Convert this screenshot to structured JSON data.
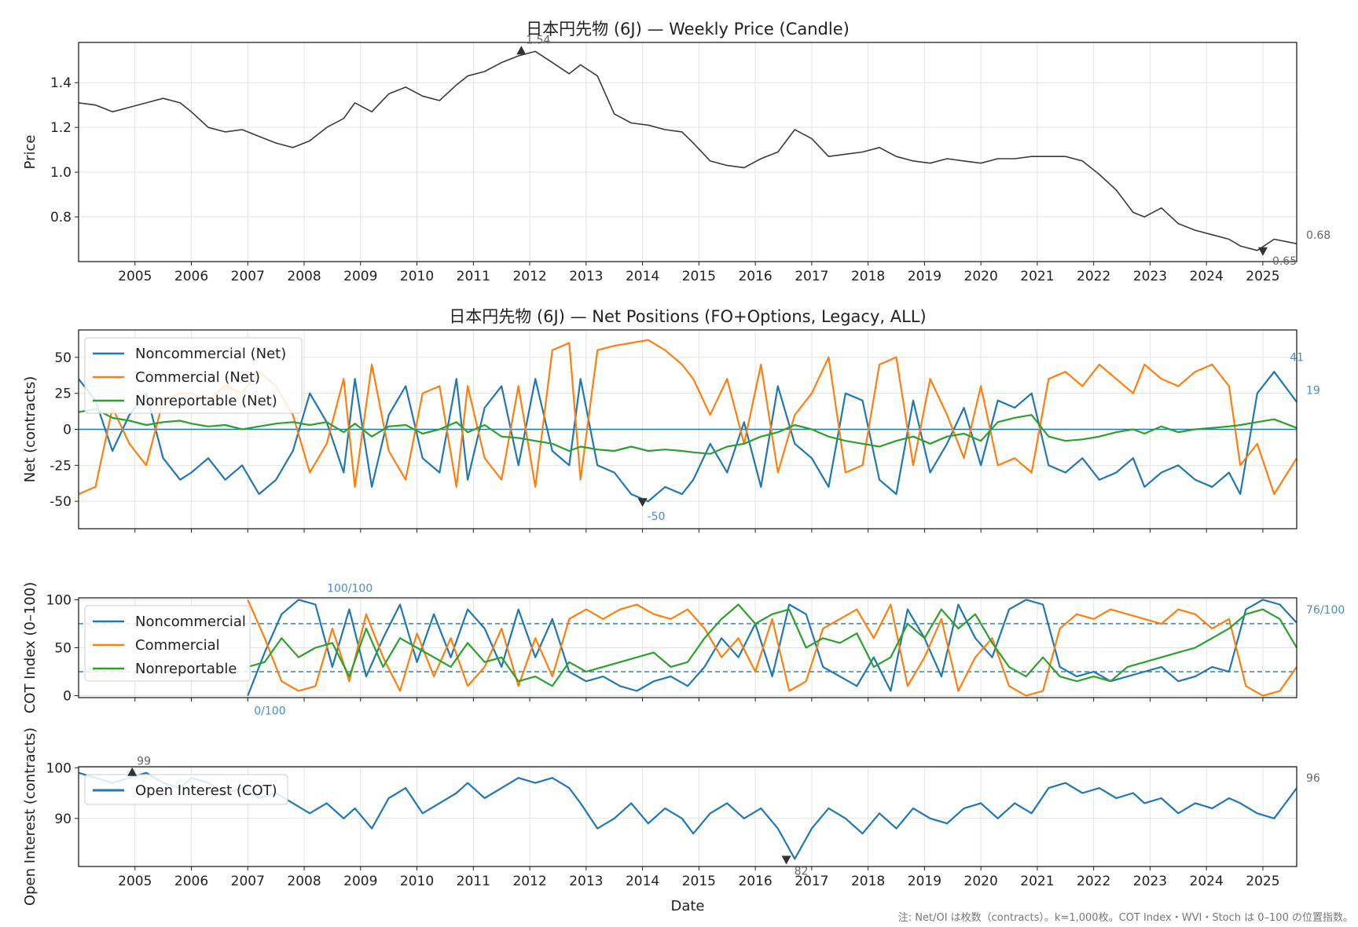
{
  "chart_data": [
    {
      "type": "line",
      "title": "日本円先物 (6J) — Weekly Price (Candle)",
      "xlabel": "",
      "ylabel": "Price",
      "x_ticks": [
        "2005",
        "2006",
        "2007",
        "2008",
        "2009",
        "2010",
        "2011",
        "2012",
        "2013",
        "2014",
        "2015",
        "2016",
        "2017",
        "2018",
        "2019",
        "2020",
        "2021",
        "2022",
        "2023",
        "2024",
        "2025"
      ],
      "y_ticks": [
        "0.8",
        "1.0",
        "1.2",
        "1.4"
      ],
      "ylim": [
        0.6,
        1.58
      ],
      "xlim": [
        2004.0,
        2025.6
      ],
      "grid": true,
      "x": [
        2004.0,
        2004.3,
        2004.6,
        2004.9,
        2005.2,
        2005.5,
        2005.8,
        2006.0,
        2006.3,
        2006.6,
        2006.9,
        2007.2,
        2007.5,
        2007.8,
        2008.1,
        2008.4,
        2008.7,
        2008.9,
        2009.2,
        2009.5,
        2009.8,
        2010.1,
        2010.4,
        2010.7,
        2010.9,
        2011.2,
        2011.5,
        2011.8,
        2012.1,
        2012.4,
        2012.7,
        2012.9,
        2013.2,
        2013.5,
        2013.8,
        2014.1,
        2014.4,
        2014.7,
        2014.9,
        2015.2,
        2015.5,
        2015.8,
        2016.1,
        2016.4,
        2016.7,
        2017.0,
        2017.3,
        2017.6,
        2017.9,
        2018.2,
        2018.5,
        2018.8,
        2019.1,
        2019.4,
        2019.7,
        2020.0,
        2020.3,
        2020.6,
        2020.9,
        2021.2,
        2021.5,
        2021.8,
        2022.1,
        2022.4,
        2022.7,
        2022.9,
        2023.2,
        2023.5,
        2023.8,
        2024.1,
        2024.4,
        2024.6,
        2024.9,
        2025.2,
        2025.6
      ],
      "series": [
        {
          "name": "",
          "values": [
            1.31,
            1.3,
            1.27,
            1.29,
            1.31,
            1.33,
            1.31,
            1.27,
            1.2,
            1.18,
            1.19,
            1.16,
            1.13,
            1.11,
            1.14,
            1.2,
            1.24,
            1.31,
            1.27,
            1.35,
            1.38,
            1.34,
            1.32,
            1.39,
            1.43,
            1.45,
            1.49,
            1.52,
            1.54,
            1.49,
            1.44,
            1.48,
            1.43,
            1.26,
            1.22,
            1.21,
            1.19,
            1.18,
            1.13,
            1.05,
            1.03,
            1.02,
            1.06,
            1.09,
            1.19,
            1.15,
            1.07,
            1.08,
            1.09,
            1.11,
            1.07,
            1.05,
            1.04,
            1.06,
            1.05,
            1.04,
            1.06,
            1.06,
            1.07,
            1.07,
            1.07,
            1.05,
            0.99,
            0.92,
            0.82,
            0.8,
            0.84,
            0.77,
            0.74,
            0.72,
            0.7,
            0.67,
            0.65,
            0.7,
            0.68
          ]
        }
      ],
      "annotations": [
        {
          "text": "1.54"
        },
        {
          "text": "0.68"
        },
        {
          "text": "0.65"
        }
      ]
    },
    {
      "type": "line",
      "title": "日本円先物 (6J) — Net Positions (FO+Options, Legacy, ALL)",
      "xlabel": "",
      "ylabel": "Net (contracts)",
      "y_ticks": [
        "-50",
        "-25",
        "0",
        "25",
        "50"
      ],
      "ylim": [
        -69,
        69
      ],
      "xlim": [
        2004.0,
        2025.6
      ],
      "grid": true,
      "legend": "top-left",
      "x": [
        2004.0,
        2004.3,
        2004.6,
        2004.9,
        2005.2,
        2005.5,
        2005.8,
        2006.0,
        2006.3,
        2006.6,
        2006.9,
        2007.2,
        2007.5,
        2007.8,
        2008.1,
        2008.4,
        2008.7,
        2008.9,
        2009.2,
        2009.5,
        2009.8,
        2010.1,
        2010.4,
        2010.7,
        2010.9,
        2011.2,
        2011.5,
        2011.8,
        2012.1,
        2012.4,
        2012.7,
        2012.9,
        2013.2,
        2013.5,
        2013.8,
        2014.1,
        2014.4,
        2014.7,
        2014.9,
        2015.2,
        2015.5,
        2015.8,
        2016.1,
        2016.4,
        2016.7,
        2017.0,
        2017.3,
        2017.6,
        2017.9,
        2018.2,
        2018.5,
        2018.8,
        2019.1,
        2019.4,
        2019.7,
        2020.0,
        2020.3,
        2020.6,
        2020.9,
        2021.2,
        2021.5,
        2021.8,
        2022.1,
        2022.4,
        2022.7,
        2022.9,
        2023.2,
        2023.5,
        2023.8,
        2024.1,
        2024.4,
        2024.6,
        2024.9,
        2025.2,
        2025.6
      ],
      "series": [
        {
          "name": "Noncommercial (Net)",
          "values": [
            35,
            20,
            -15,
            10,
            25,
            -20,
            -35,
            -30,
            -20,
            -35,
            -25,
            -45,
            -35,
            -15,
            25,
            5,
            -30,
            35,
            -40,
            10,
            30,
            -20,
            -30,
            35,
            -35,
            15,
            30,
            -25,
            35,
            -15,
            -25,
            35,
            -25,
            -30,
            -45,
            -50,
            -40,
            -45,
            -35,
            -10,
            -30,
            5,
            -40,
            30,
            -10,
            -20,
            -40,
            25,
            20,
            -35,
            -45,
            20,
            -30,
            -10,
            15,
            -25,
            20,
            15,
            25,
            -25,
            -30,
            -20,
            -35,
            -30,
            -20,
            -40,
            -30,
            -25,
            -35,
            -40,
            -30,
            -45,
            25,
            40,
            19
          ]
        },
        {
          "name": "Commercial (Net)",
          "values": [
            -45,
            -40,
            15,
            -10,
            -25,
            20,
            25,
            25,
            20,
            30,
            25,
            40,
            30,
            10,
            -30,
            -10,
            35,
            -40,
            45,
            -15,
            -35,
            25,
            30,
            -40,
            30,
            -20,
            -35,
            30,
            -40,
            55,
            60,
            -35,
            55,
            58,
            60,
            62,
            55,
            45,
            35,
            10,
            35,
            -10,
            45,
            -30,
            10,
            25,
            50,
            -30,
            -25,
            45,
            50,
            -25,
            35,
            10,
            -20,
            30,
            -25,
            -20,
            -30,
            35,
            40,
            30,
            45,
            35,
            25,
            45,
            35,
            30,
            40,
            45,
            30,
            -25,
            -10,
            -45,
            -20
          ]
        },
        {
          "name": "Nonreportable (Net)",
          "values": [
            12,
            14,
            8,
            6,
            3,
            5,
            6,
            4,
            2,
            3,
            0,
            2,
            4,
            5,
            3,
            5,
            -2,
            4,
            -5,
            2,
            3,
            -3,
            0,
            5,
            -2,
            3,
            -5,
            -6,
            -8,
            -10,
            -15,
            -12,
            -14,
            -15,
            -12,
            -15,
            -14,
            -15,
            -16,
            -17,
            -12,
            -10,
            -5,
            -2,
            3,
            0,
            -5,
            -8,
            -10,
            -12,
            -8,
            -5,
            -10,
            -5,
            -3,
            -8,
            5,
            8,
            10,
            -5,
            -8,
            -7,
            -5,
            -2,
            0,
            -3,
            2,
            -2,
            0,
            1,
            2,
            3,
            5,
            7,
            1
          ]
        }
      ],
      "annotations": [
        {
          "text": "-50"
        },
        {
          "text": "41"
        },
        {
          "text": "19"
        }
      ]
    },
    {
      "type": "line",
      "title": "",
      "xlabel": "",
      "ylabel": "COT Index (0–100)",
      "y_ticks": [
        "0",
        "50",
        "100"
      ],
      "ylim": [
        -2,
        102
      ],
      "xlim": [
        2004.0,
        2025.6
      ],
      "grid": true,
      "legend": "top-left",
      "reference_lines": [
        25,
        75
      ],
      "x": [
        2007.0,
        2007.3,
        2007.6,
        2007.9,
        2008.2,
        2008.5,
        2008.8,
        2009.1,
        2009.4,
        2009.7,
        2010.0,
        2010.3,
        2010.6,
        2010.9,
        2011.2,
        2011.5,
        2011.8,
        2012.1,
        2012.4,
        2012.7,
        2013.0,
        2013.3,
        2013.6,
        2013.9,
        2014.2,
        2014.5,
        2014.8,
        2015.1,
        2015.4,
        2015.7,
        2016.0,
        2016.3,
        2016.6,
        2016.9,
        2017.2,
        2017.5,
        2017.8,
        2018.1,
        2018.4,
        2018.7,
        2019.0,
        2019.3,
        2019.6,
        2019.9,
        2020.2,
        2020.5,
        2020.8,
        2021.1,
        2021.4,
        2021.7,
        2022.0,
        2022.3,
        2022.6,
        2022.9,
        2023.2,
        2023.5,
        2023.8,
        2024.1,
        2024.4,
        2024.7,
        2025.0,
        2025.3,
        2025.6
      ],
      "series": [
        {
          "name": "Noncommercial",
          "values": [
            0,
            45,
            85,
            100,
            95,
            30,
            90,
            20,
            60,
            95,
            35,
            85,
            40,
            90,
            70,
            30,
            90,
            40,
            80,
            25,
            15,
            20,
            10,
            5,
            15,
            20,
            10,
            30,
            60,
            40,
            75,
            20,
            95,
            85,
            30,
            20,
            10,
            40,
            5,
            90,
            60,
            20,
            95,
            60,
            40,
            90,
            100,
            95,
            30,
            20,
            25,
            15,
            20,
            25,
            30,
            15,
            20,
            30,
            25,
            90,
            100,
            95,
            76
          ]
        },
        {
          "name": "Commercial",
          "values": [
            100,
            60,
            15,
            5,
            10,
            70,
            15,
            85,
            40,
            5,
            65,
            20,
            60,
            10,
            30,
            70,
            10,
            60,
            20,
            80,
            90,
            80,
            90,
            95,
            85,
            80,
            90,
            70,
            40,
            60,
            25,
            80,
            5,
            15,
            70,
            80,
            90,
            60,
            95,
            10,
            40,
            80,
            5,
            40,
            60,
            10,
            0,
            5,
            70,
            85,
            80,
            90,
            85,
            80,
            75,
            90,
            85,
            70,
            80,
            10,
            0,
            5,
            30
          ]
        },
        {
          "name": "Nonreportable",
          "values": [
            30,
            35,
            60,
            40,
            50,
            55,
            20,
            70,
            30,
            60,
            50,
            40,
            30,
            55,
            35,
            40,
            15,
            20,
            10,
            35,
            25,
            30,
            35,
            40,
            45,
            30,
            35,
            60,
            80,
            95,
            75,
            85,
            90,
            50,
            60,
            55,
            65,
            30,
            40,
            75,
            60,
            90,
            70,
            85,
            55,
            30,
            20,
            40,
            20,
            15,
            20,
            15,
            30,
            35,
            40,
            45,
            50,
            60,
            70,
            85,
            90,
            80,
            50
          ]
        }
      ],
      "annotations": [
        {
          "text": "100/100"
        },
        {
          "text": "0/100"
        },
        {
          "text": "76/100"
        }
      ]
    },
    {
      "type": "line",
      "title": "",
      "xlabel": "Date",
      "ylabel": "Open Interest (contracts)",
      "x_ticks": [
        "2005",
        "2006",
        "2007",
        "2008",
        "2009",
        "2010",
        "2011",
        "2012",
        "2013",
        "2014",
        "2015",
        "2016",
        "2017",
        "2018",
        "2019",
        "2020",
        "2021",
        "2022",
        "2023",
        "2024",
        "2025"
      ],
      "y_ticks": [
        "90",
        "100"
      ],
      "ylim": [
        80.5,
        100.2
      ],
      "xlim": [
        2004.0,
        2025.6
      ],
      "grid": true,
      "legend": "top-left",
      "x": [
        2004.0,
        2004.3,
        2004.6,
        2004.9,
        2005.2,
        2005.5,
        2005.8,
        2006.0,
        2006.3,
        2006.6,
        2006.9,
        2007.2,
        2007.5,
        2007.8,
        2008.1,
        2008.4,
        2008.7,
        2008.9,
        2009.2,
        2009.5,
        2009.8,
        2010.1,
        2010.4,
        2010.7,
        2010.9,
        2011.2,
        2011.5,
        2011.8,
        2012.1,
        2012.4,
        2012.7,
        2012.9,
        2013.2,
        2013.5,
        2013.8,
        2014.1,
        2014.4,
        2014.7,
        2014.9,
        2015.2,
        2015.5,
        2015.8,
        2016.1,
        2016.4,
        2016.7,
        2017.0,
        2017.3,
        2017.6,
        2017.9,
        2018.2,
        2018.5,
        2018.8,
        2019.1,
        2019.4,
        2019.7,
        2020.0,
        2020.3,
        2020.6,
        2020.9,
        2021.2,
        2021.5,
        2021.8,
        2022.1,
        2022.4,
        2022.7,
        2022.9,
        2023.2,
        2023.5,
        2023.8,
        2024.1,
        2024.4,
        2024.6,
        2024.9,
        2025.2,
        2025.6
      ],
      "series": [
        {
          "name": "Open Interest (COT)",
          "values": [
            99,
            98,
            97,
            98,
            99,
            97,
            96,
            98,
            97,
            95,
            96,
            94,
            95,
            93,
            91,
            93,
            90,
            92,
            88,
            94,
            96,
            91,
            93,
            95,
            97,
            94,
            96,
            98,
            97,
            98,
            96,
            93,
            88,
            90,
            93,
            89,
            92,
            90,
            87,
            91,
            93,
            90,
            92,
            88,
            82,
            88,
            92,
            90,
            87,
            91,
            88,
            92,
            90,
            89,
            92,
            93,
            90,
            93,
            91,
            96,
            97,
            95,
            96,
            94,
            95,
            93,
            94,
            91,
            93,
            92,
            94,
            93,
            91,
            90,
            96
          ]
        }
      ],
      "annotations": [
        {
          "text": "99"
        },
        {
          "text": "82"
        },
        {
          "text": "96"
        }
      ]
    }
  ],
  "footnote": "注: Net/OI は枚数（contracts）。k=1,000枚。COT Index・WVI・Stoch は 0–100 の位置指数。",
  "colors": {
    "price": "#3a3a3a",
    "noncommercial": "#1f77b4",
    "commercial": "#ff7f0e",
    "nonreportable": "#2ca02c",
    "grid": "#e3e3e3",
    "annotation_blue": "#4a8cc4",
    "annotation_gray": "#666666"
  }
}
